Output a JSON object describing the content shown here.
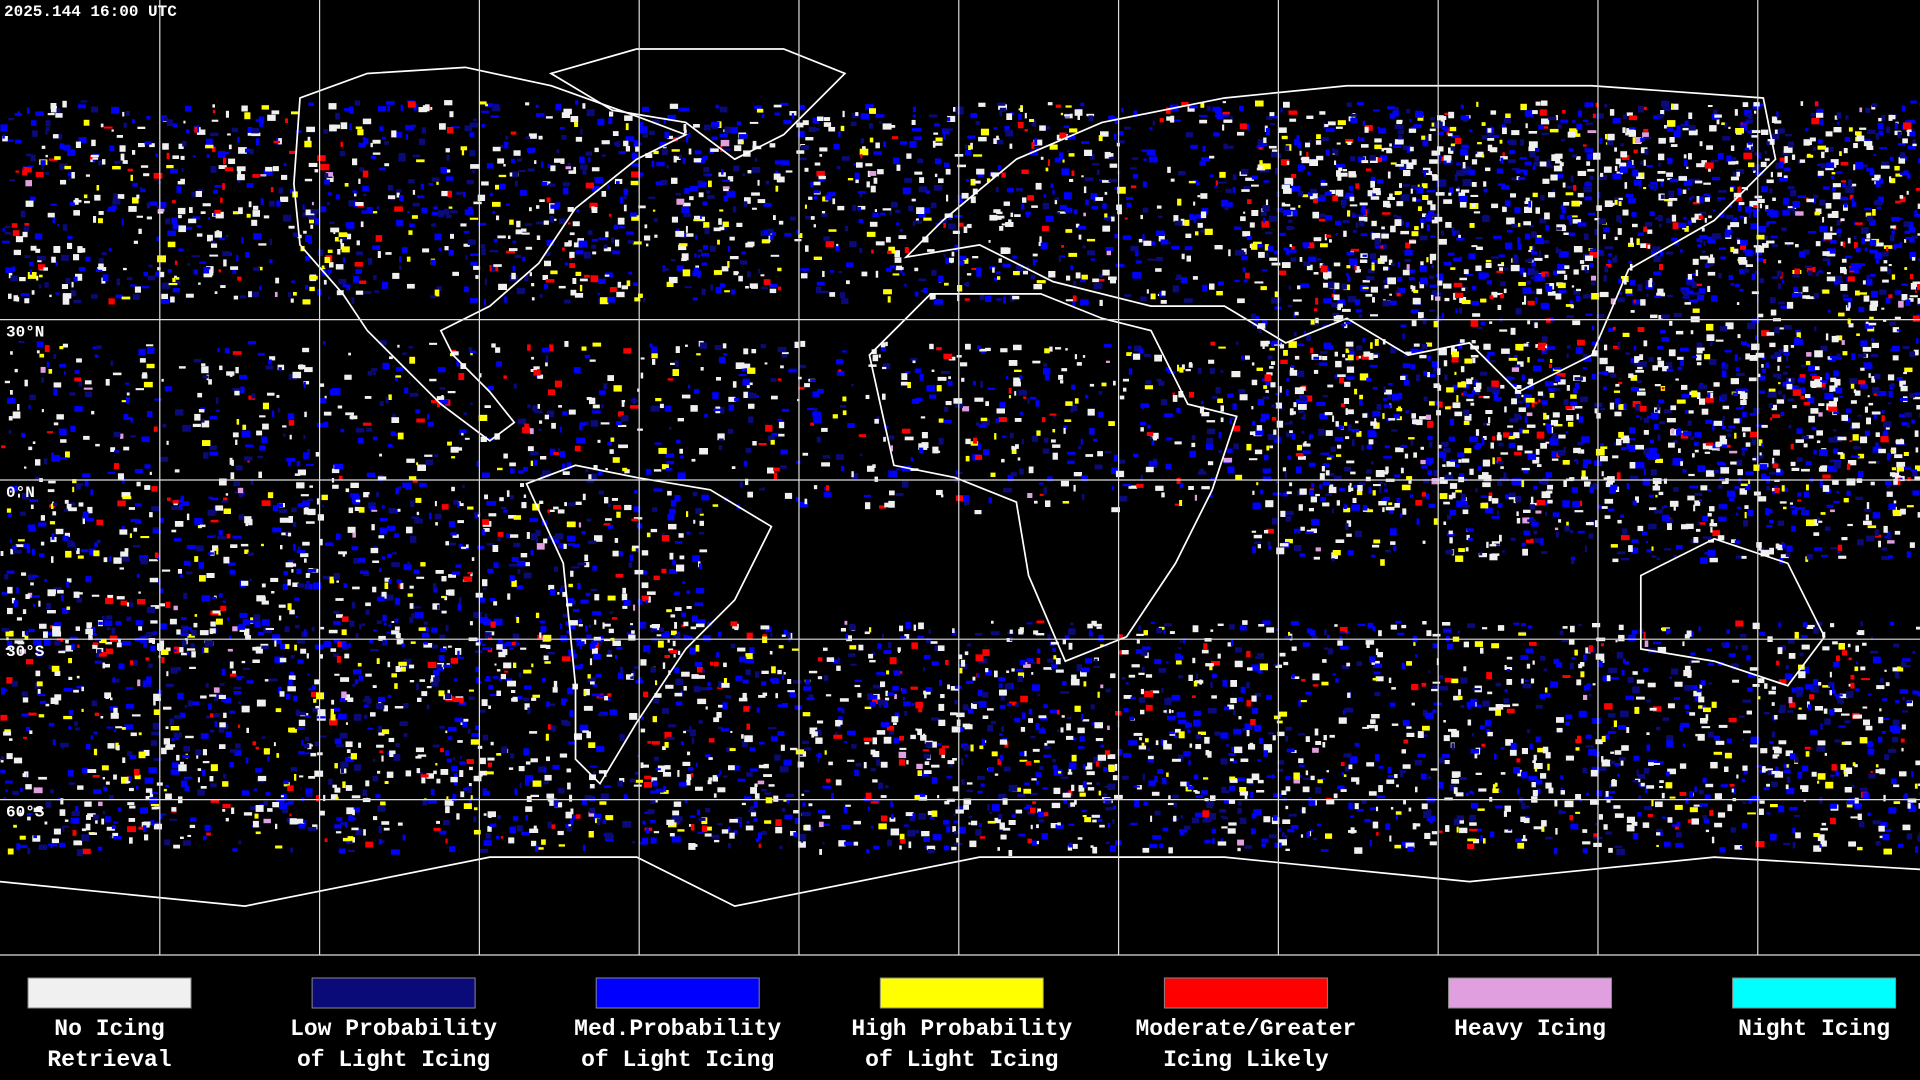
{
  "header": {
    "timestamp": "2025.144 16:00 UTC"
  },
  "map": {
    "grid_labels": [
      "30°N",
      "0°N",
      "30°S",
      "60°S"
    ]
  },
  "legend": {
    "items": [
      {
        "lines": [
          "No Icing",
          "Retrieval"
        ],
        "color": "#f0f0f0"
      },
      {
        "lines": [
          "Low Probability",
          "of Light Icing"
        ],
        "color": "#0a0a78"
      },
      {
        "lines": [
          "Med.Probability",
          "of Light Icing"
        ],
        "color": "#0000ff"
      },
      {
        "lines": [
          "High Probability",
          "of Light Icing"
        ],
        "color": "#ffff00"
      },
      {
        "lines": [
          "Moderate/Greater",
          "Icing Likely"
        ],
        "color": "#ff0000"
      },
      {
        "lines": [
          "Heavy Icing"
        ],
        "color": "#e0a0e0"
      },
      {
        "lines": [
          "Night Icing"
        ],
        "color": "#00ffff"
      }
    ]
  }
}
